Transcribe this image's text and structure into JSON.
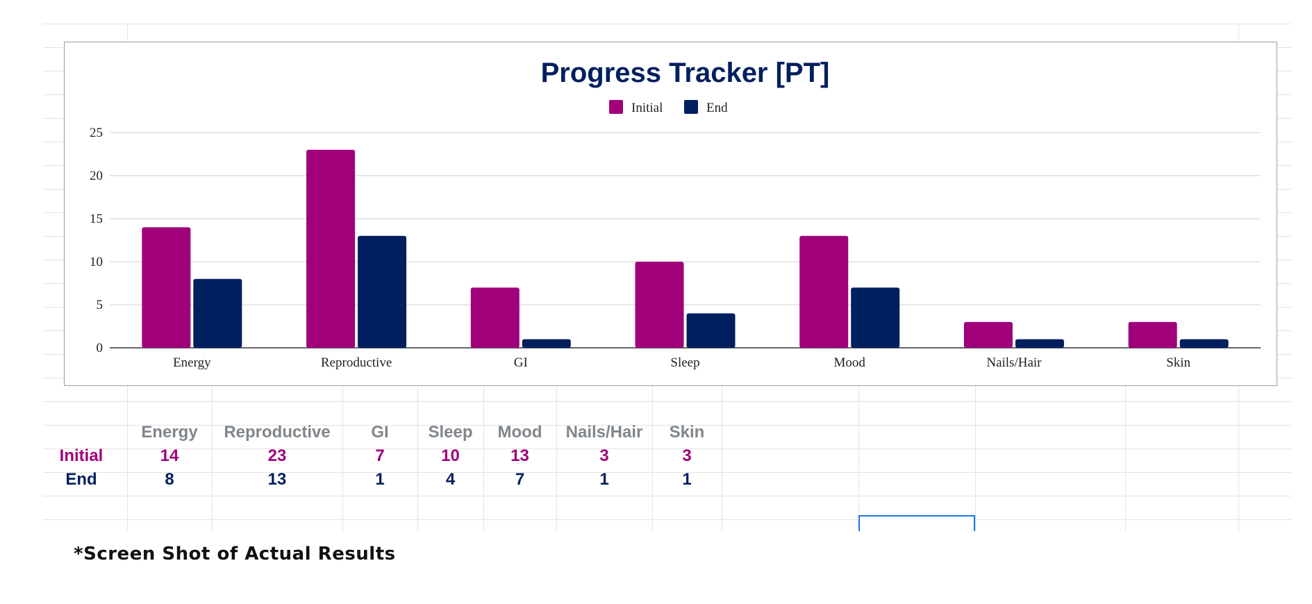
{
  "chart_data": {
    "type": "bar",
    "title": "Progress Tracker [PT]",
    "categories": [
      "Energy",
      "Reproductive",
      "GI",
      "Sleep",
      "Mood",
      "Nails/Hair",
      "Skin"
    ],
    "series": [
      {
        "name": "Initial",
        "color": "#a0007a",
        "values": [
          14,
          23,
          7,
          10,
          13,
          3,
          3
        ]
      },
      {
        "name": "End",
        "color": "#001f5f",
        "values": [
          8,
          13,
          1,
          4,
          7,
          1,
          1
        ]
      }
    ],
    "ylim": [
      0,
      25
    ],
    "yticks": [
      "0",
      "5",
      "10",
      "15",
      "20",
      "25"
    ],
    "legend": "top-center",
    "grid": true,
    "title_color": "#001f5f"
  },
  "table": {
    "headers": [
      "Energy",
      "Reproductive",
      "GI",
      "Sleep",
      "Mood",
      "Nails/Hair",
      "Skin"
    ],
    "rows": [
      {
        "label": "Initial",
        "values": [
          "14",
          "23",
          "7",
          "10",
          "13",
          "3",
          "3"
        ]
      },
      {
        "label": "End",
        "values": [
          "8",
          "13",
          "1",
          "4",
          "7",
          "1",
          "1"
        ]
      }
    ]
  },
  "footnote": "*Screen Shot of Actual Results"
}
